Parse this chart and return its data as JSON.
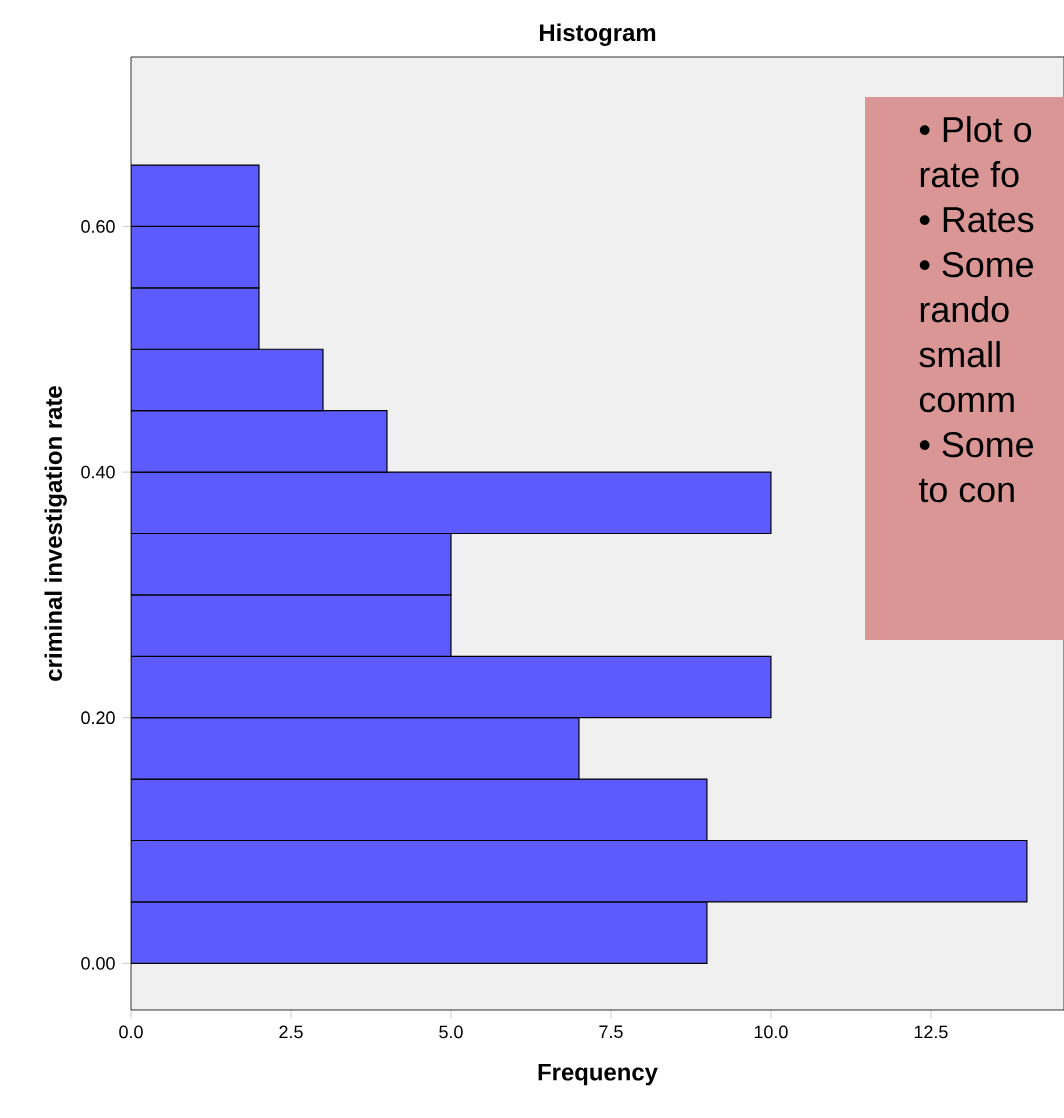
{
  "chart_data": {
    "type": "histogram",
    "orientation": "horizontal",
    "title": "Histogram",
    "xlabel": "Frequency",
    "ylabel": "criminal investigation rate",
    "bins": [
      0.0,
      0.05,
      0.1,
      0.15,
      0.2,
      0.25,
      0.3,
      0.35,
      0.4,
      0.45,
      0.5,
      0.55,
      0.6,
      0.65
    ],
    "values": [
      9,
      14,
      9,
      7,
      10,
      5,
      5,
      10,
      4,
      3,
      2,
      2,
      2
    ],
    "color": "#5b5bff",
    "xlim": [
      0,
      14.58
    ],
    "xticks": [
      {
        "value": 0,
        "label": "0.0"
      },
      {
        "value": 2.5,
        "label": "2.5"
      },
      {
        "value": 5,
        "label": "5.0"
      },
      {
        "value": 7.5,
        "label": "7.5"
      },
      {
        "value": 10,
        "label": "10.0"
      },
      {
        "value": 12.5,
        "label": "12.5"
      }
    ],
    "ylim": [
      -0.038,
      0.738
    ],
    "yticks": [
      {
        "value": 0,
        "label": "0.00"
      },
      {
        "value": 0.2,
        "label": "0.20"
      },
      {
        "value": 0.4,
        "label": "0.40"
      },
      {
        "value": 0.6,
        "label": "0.60"
      }
    ],
    "grid": false,
    "annotations": [
      "• Plot o",
      "rate fo",
      "• Rates",
      "• Some",
      "rando",
      "small",
      "comm",
      "• Some",
      "to con"
    ]
  }
}
